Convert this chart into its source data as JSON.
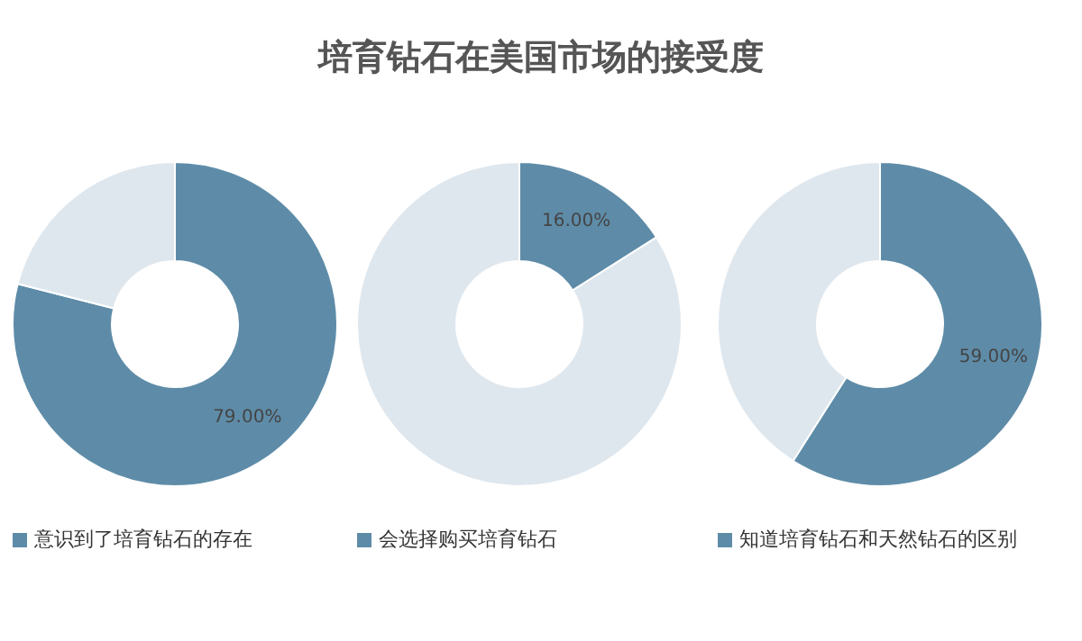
{
  "chart_data": [
    {
      "type": "other",
      "title": "培育钻石在美国市场的接受度"
    },
    {
      "type": "donut",
      "categories": [
        "意识到了培育钻石的存在",
        null
      ],
      "values": [
        79,
        21
      ],
      "colors": [
        "#5e8ca8",
        "#dfe7ee"
      ],
      "value_labels": [
        "79.00%",
        null
      ],
      "legend": "bottom"
    },
    {
      "type": "donut",
      "categories": [
        "会选择购买培育钻石",
        null
      ],
      "values": [
        16,
        84
      ],
      "colors": [
        "#5e8ca8",
        "#dfe7ee"
      ],
      "value_labels": [
        "16.00%",
        null
      ],
      "legend": "bottom"
    },
    {
      "type": "donut",
      "categories": [
        "知道培育钻石和天然钻石的区别",
        null
      ],
      "values": [
        59,
        41
      ],
      "colors": [
        "#5e8ca8",
        "#dfe7ee"
      ],
      "value_labels": [
        "59.00%",
        null
      ],
      "legend": "bottom"
    }
  ]
}
